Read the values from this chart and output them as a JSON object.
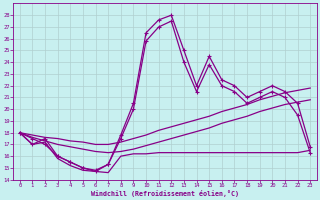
{
  "xlabel": "Windchill (Refroidissement éolien,°C)",
  "bg_color": "#c8f0f0",
  "line_color": "#880088",
  "xlim": [
    -0.5,
    23.5
  ],
  "ylim": [
    14,
    29
  ],
  "xticks": [
    0,
    1,
    2,
    3,
    4,
    5,
    6,
    7,
    8,
    9,
    10,
    11,
    12,
    13,
    14,
    15,
    16,
    17,
    18,
    19,
    20,
    21,
    22,
    23
  ],
  "yticks": [
    14,
    15,
    16,
    17,
    18,
    19,
    20,
    21,
    22,
    23,
    24,
    25,
    26,
    27,
    28
  ],
  "grid_color": "#b0d0d0",
  "line1_x": [
    0,
    1,
    2,
    3,
    4,
    5,
    6,
    7,
    8,
    9,
    10,
    11,
    12,
    13,
    14,
    15,
    16,
    17,
    18,
    19,
    20,
    21,
    22,
    23
  ],
  "line1_y": [
    18.0,
    17.8,
    17.6,
    17.5,
    17.3,
    17.2,
    17.0,
    17.0,
    17.2,
    17.5,
    17.8,
    18.2,
    18.5,
    18.8,
    19.1,
    19.4,
    19.8,
    20.1,
    20.4,
    20.8,
    21.1,
    21.4,
    21.6,
    21.8
  ],
  "line2_x": [
    0,
    1,
    2,
    3,
    4,
    5,
    6,
    7,
    8,
    9,
    10,
    11,
    12,
    13,
    14,
    15,
    16,
    17,
    18,
    19,
    20,
    21,
    22,
    23
  ],
  "line2_y": [
    18.0,
    17.6,
    17.3,
    17.0,
    16.8,
    16.6,
    16.4,
    16.3,
    16.4,
    16.6,
    16.9,
    17.2,
    17.5,
    17.8,
    18.1,
    18.4,
    18.8,
    19.1,
    19.4,
    19.8,
    20.1,
    20.4,
    20.6,
    20.8
  ],
  "spiky1_x": [
    0,
    1,
    2,
    3,
    4,
    5,
    6,
    7,
    8,
    9,
    10,
    11,
    12,
    13,
    14,
    15,
    16,
    17,
    18,
    19,
    20,
    21,
    22,
    23
  ],
  "spiky1_y": [
    18.0,
    17.5,
    17.0,
    16.0,
    15.5,
    15.0,
    14.8,
    15.3,
    17.8,
    20.5,
    26.5,
    27.6,
    28.0,
    25.0,
    22.0,
    24.5,
    22.5,
    22.0,
    21.0,
    21.5,
    22.0,
    21.5,
    20.5,
    16.8
  ],
  "spiky2_x": [
    0,
    1,
    2,
    3,
    4,
    5,
    6,
    7,
    8,
    9,
    10,
    11,
    12,
    13,
    14,
    15,
    16,
    17,
    18,
    19,
    20,
    21,
    22,
    23
  ],
  "spiky2_y": [
    18.0,
    17.0,
    17.5,
    16.0,
    15.5,
    15.0,
    14.7,
    15.3,
    17.5,
    20.0,
    25.8,
    27.0,
    27.5,
    24.0,
    21.5,
    23.8,
    22.0,
    21.5,
    20.5,
    21.0,
    21.5,
    21.0,
    19.5,
    16.3
  ],
  "lower_x": [
    0,
    1,
    2,
    3,
    4,
    5,
    6,
    7,
    8,
    9,
    10,
    11,
    12,
    13,
    14,
    15,
    16,
    17,
    18,
    19,
    20,
    21,
    22,
    23
  ],
  "lower_y": [
    18.0,
    17.0,
    17.2,
    15.8,
    15.2,
    14.8,
    14.7,
    14.6,
    16.0,
    16.2,
    16.2,
    16.3,
    16.3,
    16.3,
    16.3,
    16.3,
    16.3,
    16.3,
    16.3,
    16.3,
    16.3,
    16.3,
    16.3,
    16.5
  ]
}
